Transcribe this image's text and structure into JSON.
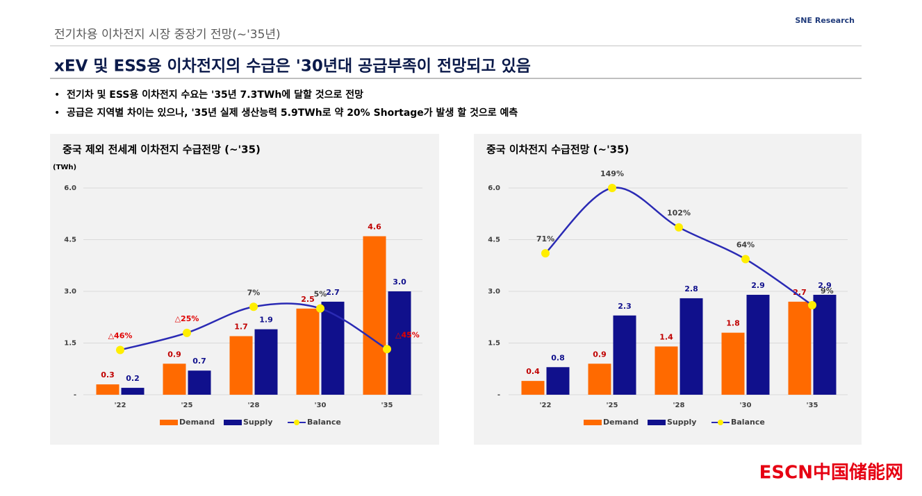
{
  "header": {
    "subtitle": "전기차용 이차전지 시장 중장기 전망(~'35년)",
    "logo": "SNE Research",
    "title": "xEV 및 ESS용 이차전지의 수급은 '30년대 공급부족이 전망되고 있음",
    "bullets": [
      "전기차 및 ESS용 이차전지 수요는 '35년 7.3TWh에 달할 것으로 전망",
      "공급은 지역별 차이는 있으나, '35년 실제 생산능력 5.9TWh로 약 20% Shortage가 발생 할 것으로 예측"
    ]
  },
  "footer": {
    "logo": "ESCN中国储能网"
  },
  "chart_data": [
    {
      "type": "bar",
      "title": "중국 제외 전세계 이차전지 수급전망 (~'35)",
      "y_label": "(TWh)",
      "categories": [
        "'22",
        "'25",
        "'28",
        "'30",
        "'35"
      ],
      "series": [
        {
          "name": "Demand",
          "color": "#ff6a00",
          "label_color": "#c00000",
          "values": [
            0.3,
            0.9,
            1.7,
            2.5,
            4.6
          ]
        },
        {
          "name": "Supply",
          "color": "#10108c",
          "label_color": "#10108c",
          "values": [
            0.2,
            0.7,
            1.9,
            2.7,
            3.0
          ],
          "value_labels": [
            "0.2",
            "0.7",
            "1.9",
            "2.7",
            "3.0"
          ]
        },
        {
          "name": "Balance",
          "type": "line",
          "axis": "y2",
          "color": "#2a2ab4",
          "marker_color": "#ffee00",
          "values": [
            -46,
            -25,
            7,
            5,
            -45
          ],
          "value_labels": [
            "△46%",
            "△25%",
            "7%",
            "5%",
            "△45%"
          ]
        }
      ],
      "ylim": [
        0,
        6
      ],
      "yticks": [
        {
          "value": 0,
          "label": "-"
        },
        1.5,
        {
          "value": 3,
          "label": "3.0"
        },
        4.5,
        {
          "value": 6,
          "label": "6.0"
        }
      ],
      "y2lim": [
        -101,
        153
      ],
      "grid": true
    },
    {
      "type": "bar",
      "title": "중국 이차전지 수급전망 (~'35)",
      "categories": [
        "'22",
        "'25",
        "'28",
        "'30",
        "'35"
      ],
      "series": [
        {
          "name": "Demand",
          "color": "#ff6a00",
          "label_color": "#c00000",
          "values": [
            0.4,
            0.9,
            1.4,
            1.8,
            2.7
          ]
        },
        {
          "name": "Supply",
          "color": "#10108c",
          "label_color": "#10108c",
          "values": [
            0.8,
            2.3,
            2.8,
            2.9,
            2.9
          ]
        },
        {
          "name": "Balance",
          "type": "line",
          "axis": "y2",
          "color": "#2a2ab4",
          "marker_color": "#ffee00",
          "values": [
            71,
            149,
            102,
            64,
            9
          ],
          "value_labels": [
            "71%",
            "149%",
            "102%",
            "64%",
            "9%"
          ]
        }
      ],
      "ylim": [
        0,
        6
      ],
      "yticks": [
        {
          "value": 0,
          "label": "-"
        },
        1.5,
        {
          "value": 3,
          "label": "3.0"
        },
        4.5,
        {
          "value": 6,
          "label": "6.0"
        }
      ],
      "y2lim": [
        -98,
        149
      ],
      "grid": true
    }
  ]
}
